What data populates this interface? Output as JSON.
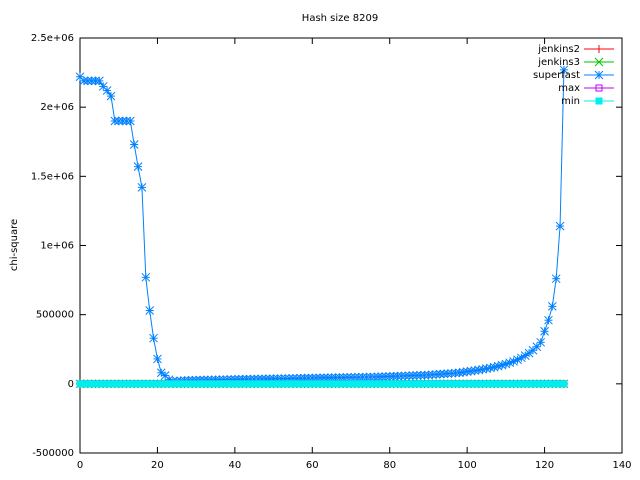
{
  "chart_data": {
    "type": "line",
    "title": "Hash size 8209",
    "ylabel": "chi-square",
    "xlim": [
      0,
      140
    ],
    "xticks": [
      0,
      20,
      40,
      60,
      80,
      100,
      120,
      140
    ],
    "ylim": [
      -500000,
      2500000
    ],
    "yticks": [
      -500000,
      0,
      500000,
      {
        "value": 1000000,
        "label": "1e+06"
      },
      {
        "value": 1500000,
        "label": "1.5e+06"
      },
      {
        "value": 2000000,
        "label": "2e+06"
      },
      {
        "value": 2500000,
        "label": "2.5e+06"
      }
    ],
    "grid": false,
    "legend": "top-right",
    "x": [
      0,
      1,
      2,
      3,
      4,
      5,
      6,
      7,
      8,
      9,
      10,
      11,
      12,
      13,
      14,
      15,
      16,
      17,
      18,
      19,
      20,
      21,
      22,
      23,
      24,
      25,
      26,
      27,
      28,
      29,
      30,
      31,
      32,
      33,
      34,
      35,
      36,
      37,
      38,
      39,
      40,
      41,
      42,
      43,
      44,
      45,
      46,
      47,
      48,
      49,
      50,
      51,
      52,
      53,
      54,
      55,
      56,
      57,
      58,
      59,
      60,
      61,
      62,
      63,
      64,
      65,
      66,
      67,
      68,
      69,
      70,
      71,
      72,
      73,
      74,
      75,
      76,
      77,
      78,
      79,
      80,
      81,
      82,
      83,
      84,
      85,
      86,
      87,
      88,
      89,
      90,
      91,
      92,
      93,
      94,
      95,
      96,
      97,
      98,
      99,
      100,
      101,
      102,
      103,
      104,
      105,
      106,
      107,
      108,
      109,
      110,
      111,
      112,
      113,
      114,
      115,
      116,
      117,
      118,
      119,
      120,
      121,
      122,
      123,
      124,
      125
    ],
    "series": [
      {
        "name": "jenkins2",
        "color": "#ff0000",
        "marker": "plus",
        "values": [
          0,
          0,
          0,
          0,
          0,
          0,
          0,
          0,
          0,
          0,
          0,
          0,
          0,
          0,
          0,
          0,
          0,
          0,
          0,
          0,
          0,
          0,
          0,
          0,
          0,
          0,
          0,
          0,
          0,
          0,
          0,
          0,
          0,
          0,
          0,
          0,
          0,
          0,
          0,
          0,
          0,
          0,
          0,
          0,
          0,
          0,
          0,
          0,
          0,
          0,
          0,
          0,
          0,
          0,
          0,
          0,
          0,
          0,
          0,
          0,
          0,
          0,
          0,
          0,
          0,
          0,
          0,
          0,
          0,
          0,
          0,
          0,
          0,
          0,
          0,
          0,
          0,
          0,
          0,
          0,
          0,
          0,
          0,
          0,
          0,
          0,
          0,
          0,
          0,
          0,
          0,
          0,
          0,
          0,
          0,
          0,
          0,
          0,
          0,
          0,
          0,
          0,
          0,
          0,
          0,
          0,
          0,
          0,
          0,
          0,
          0,
          0,
          0,
          0,
          0,
          0,
          0,
          0,
          0,
          0,
          0,
          0,
          0,
          0,
          0,
          0
        ]
      },
      {
        "name": "jenkins3",
        "color": "#00c000",
        "marker": "cross",
        "values": [
          0,
          0,
          0,
          0,
          0,
          0,
          0,
          0,
          0,
          0,
          0,
          0,
          0,
          0,
          0,
          0,
          0,
          0,
          0,
          0,
          0,
          0,
          0,
          0,
          0,
          0,
          0,
          0,
          0,
          0,
          0,
          0,
          0,
          0,
          0,
          0,
          0,
          0,
          0,
          0,
          0,
          0,
          0,
          0,
          0,
          0,
          0,
          0,
          0,
          0,
          0,
          0,
          0,
          0,
          0,
          0,
          0,
          0,
          0,
          0,
          0,
          0,
          0,
          0,
          0,
          0,
          0,
          0,
          0,
          0,
          0,
          0,
          0,
          0,
          0,
          0,
          0,
          0,
          0,
          0,
          0,
          0,
          0,
          0,
          0,
          0,
          0,
          0,
          0,
          0,
          0,
          0,
          0,
          0,
          0,
          0,
          0,
          0,
          0,
          0,
          0,
          0,
          0,
          0,
          0,
          0,
          0,
          0,
          0,
          0,
          0,
          0,
          0,
          0,
          0,
          0,
          0,
          0,
          0,
          0,
          0,
          0,
          0,
          0,
          0,
          0
        ]
      },
      {
        "name": "superfast",
        "color": "#0080ff",
        "marker": "star",
        "values": [
          2220000,
          2190000,
          2190000,
          2190000,
          2190000,
          2190000,
          2150000,
          2120000,
          2080000,
          1900000,
          1900000,
          1900000,
          1900000,
          1900000,
          1730000,
          1570000,
          1420000,
          770000,
          530000,
          330000,
          180000,
          80000,
          60000,
          30000,
          20000,
          20000,
          22000,
          24000,
          25000,
          26000,
          27000,
          28000,
          28000,
          29000,
          29000,
          30000,
          30000,
          31000,
          31000,
          32000,
          32000,
          33000,
          33000,
          34000,
          34000,
          35000,
          35000,
          36000,
          36000,
          37000,
          37000,
          38000,
          38000,
          39000,
          39000,
          40000,
          40000,
          41000,
          41000,
          42000,
          42000,
          43000,
          43000,
          44000,
          44000,
          45000,
          45000,
          46000,
          46000,
          47000,
          47000,
          48000,
          48000,
          49000,
          49000,
          50000,
          50000,
          51000,
          52000,
          53000,
          54000,
          55000,
          56000,
          57000,
          58000,
          59000,
          60000,
          61000,
          62000,
          63000,
          64000,
          66000,
          68000,
          70000,
          72000,
          74000,
          76000,
          78000,
          80000,
          84000,
          88000,
          92000,
          96000,
          100000,
          105000,
          110000,
          115000,
          121000,
          128000,
          135000,
          143000,
          152000,
          162000,
          174000,
          188000,
          204000,
          222000,
          243000,
          268000,
          300000,
          380000,
          460000,
          560000,
          760000,
          1140000,
          2270000
        ]
      },
      {
        "name": "max",
        "color": "#c000ff",
        "marker": "box",
        "values": [
          0,
          0,
          0,
          0,
          0,
          0,
          0,
          0,
          0,
          0,
          0,
          0,
          0,
          0,
          0,
          0,
          0,
          0,
          0,
          0,
          0,
          0,
          0,
          0,
          0,
          0,
          0,
          0,
          0,
          0,
          0,
          0,
          0,
          0,
          0,
          0,
          0,
          0,
          0,
          0,
          0,
          0,
          0,
          0,
          0,
          0,
          0,
          0,
          0,
          0,
          0,
          0,
          0,
          0,
          0,
          0,
          0,
          0,
          0,
          0,
          0,
          0,
          0,
          0,
          0,
          0,
          0,
          0,
          0,
          0,
          0,
          0,
          0,
          0,
          0,
          0,
          0,
          0,
          0,
          0,
          0,
          0,
          0,
          0,
          0,
          0,
          0,
          0,
          0,
          0,
          0,
          0,
          0,
          0,
          0,
          0,
          0,
          0,
          0,
          0,
          0,
          0,
          0,
          0,
          0,
          0,
          0,
          0,
          0,
          0,
          0,
          0,
          0,
          0,
          0,
          0,
          0,
          0,
          0,
          0,
          0,
          0,
          0,
          0,
          0,
          0
        ]
      },
      {
        "name": "min",
        "color": "#00eeee",
        "marker": "fbox",
        "values": [
          0,
          0,
          0,
          0,
          0,
          0,
          0,
          0,
          0,
          0,
          0,
          0,
          0,
          0,
          0,
          0,
          0,
          0,
          0,
          0,
          0,
          0,
          0,
          0,
          0,
          0,
          0,
          0,
          0,
          0,
          0,
          0,
          0,
          0,
          0,
          0,
          0,
          0,
          0,
          0,
          0,
          0,
          0,
          0,
          0,
          0,
          0,
          0,
          0,
          0,
          0,
          0,
          0,
          0,
          0,
          0,
          0,
          0,
          0,
          0,
          0,
          0,
          0,
          0,
          0,
          0,
          0,
          0,
          0,
          0,
          0,
          0,
          0,
          0,
          0,
          0,
          0,
          0,
          0,
          0,
          0,
          0,
          0,
          0,
          0,
          0,
          0,
          0,
          0,
          0,
          0,
          0,
          0,
          0,
          0,
          0,
          0,
          0,
          0,
          0,
          0,
          0,
          0,
          0,
          0,
          0,
          0,
          0,
          0,
          0,
          0,
          0,
          0,
          0,
          0,
          0,
          0,
          0,
          0,
          0,
          0,
          0,
          0,
          0,
          0,
          0
        ]
      }
    ]
  }
}
